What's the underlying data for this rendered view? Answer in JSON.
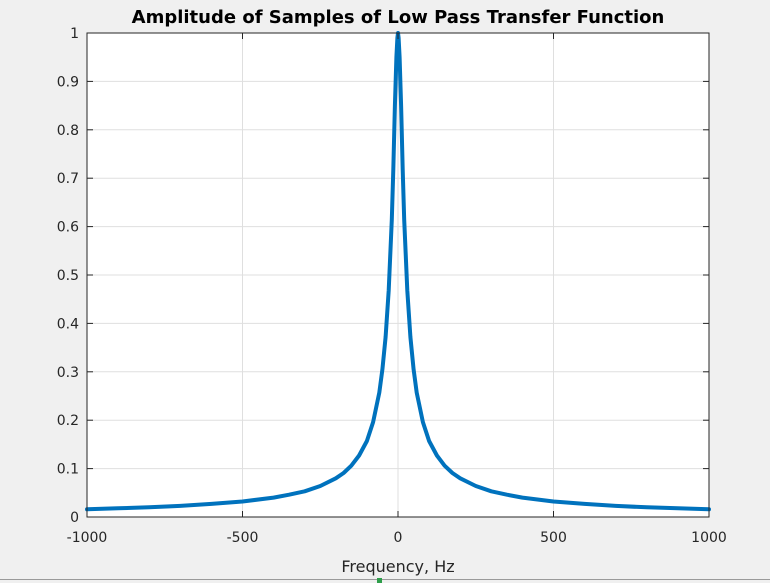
{
  "chart_data": {
    "type": "line",
    "title": "Amplitude of Samples of Low Pass Transfer Function",
    "xlabel": "Frequency, Hz",
    "ylabel": "",
    "xlim": [
      -1000,
      1000
    ],
    "ylim": [
      0,
      1
    ],
    "grid": true,
    "legend": "none",
    "xticks": [
      -1000,
      -500,
      0,
      500,
      1000
    ],
    "xtick_labels": [
      "-1000",
      "-500",
      "0",
      "500",
      "1000"
    ],
    "yticks": [
      0,
      0.1,
      0.2,
      0.3,
      0.4,
      0.5,
      0.6,
      0.7,
      0.8,
      0.9,
      1
    ],
    "ytick_labels": [
      "0",
      "0.1",
      "0.2",
      "0.3",
      "0.4",
      "0.5",
      "0.6",
      "0.7",
      "0.8",
      "0.9",
      "1"
    ],
    "series": [
      {
        "name": "Amplitude",
        "color": "#0072bd",
        "x": [
          -1000,
          -900,
          -800,
          -700,
          -600,
          -500,
          -400,
          -350,
          -300,
          -250,
          -200,
          -175,
          -150,
          -125,
          -100,
          -80,
          -60,
          -50,
          -40,
          -30,
          -20,
          -15,
          -10,
          -5,
          -2,
          0,
          2,
          5,
          10,
          15,
          20,
          30,
          40,
          50,
          60,
          80,
          100,
          125,
          150,
          175,
          200,
          250,
          300,
          350,
          400,
          500,
          600,
          700,
          800,
          900,
          1000
        ],
        "y": [
          0.016,
          0.018,
          0.02,
          0.023,
          0.027,
          0.032,
          0.04,
          0.046,
          0.053,
          0.064,
          0.08,
          0.091,
          0.106,
          0.127,
          0.157,
          0.196,
          0.257,
          0.305,
          0.372,
          0.468,
          0.614,
          0.718,
          0.85,
          0.95,
          0.99,
          1.0,
          0.99,
          0.95,
          0.85,
          0.718,
          0.614,
          0.468,
          0.372,
          0.305,
          0.257,
          0.196,
          0.157,
          0.127,
          0.106,
          0.091,
          0.08,
          0.064,
          0.053,
          0.046,
          0.04,
          0.032,
          0.027,
          0.023,
          0.02,
          0.018,
          0.016
        ]
      }
    ]
  },
  "colors": {
    "figure_background": "#f0f0f0",
    "axes_background": "#ffffff",
    "grid": "#dfdfdf",
    "axis": "#262626",
    "line": "#0072bd"
  }
}
